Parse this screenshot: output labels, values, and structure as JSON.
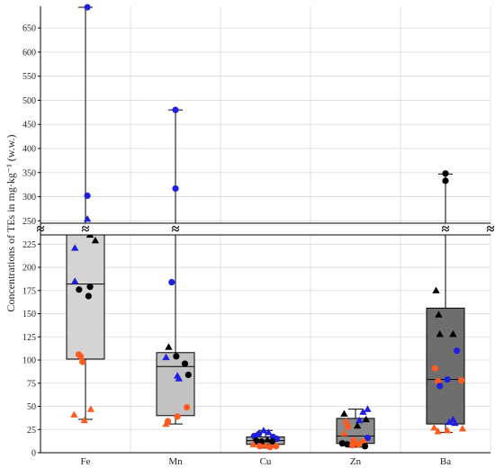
{
  "chart_data": {
    "type": "box",
    "title": "",
    "xlabel": "",
    "ylabel": "Concentrations of TEs in mg·kg⁻¹ (w.w.)",
    "break_symbol": "≈",
    "categories": [
      "Fe",
      "Mn",
      "Cu",
      "Zn",
      "Ba"
    ],
    "grid": true,
    "axis_break": {
      "lower_range": [
        0,
        235
      ],
      "upper_range": [
        245,
        695
      ]
    },
    "upper_ticks": [
      250,
      300,
      350,
      400,
      450,
      500,
      550,
      600,
      650
    ],
    "lower_ticks": [
      0,
      25,
      50,
      75,
      100,
      125,
      150,
      175,
      200,
      225
    ],
    "colors": {
      "blue": "#1f1fe0",
      "black": "#000000",
      "orange": "#ff5a1f",
      "box_edge": "#000000"
    },
    "boxes": [
      {
        "category": "Fe",
        "q1": 101,
        "median": 182,
        "q3": 235,
        "whisker_low": 36,
        "whisker_high": 693,
        "fill": "#d4d4d4"
      },
      {
        "category": "Mn",
        "q1": 40,
        "median": 93,
        "q3": 108,
        "whisker_low": 31,
        "whisker_high": 480,
        "fill": "#c2c2c2"
      },
      {
        "category": "Cu",
        "q1": 9,
        "median": 13,
        "q3": 17,
        "whisker_low": 5,
        "whisker_high": 24,
        "fill": "#a6a6a6"
      },
      {
        "category": "Zn",
        "q1": 10,
        "median": 18,
        "q3": 37,
        "whisker_low": 6,
        "whisker_high": 47,
        "fill": "#8a8a8a"
      },
      {
        "category": "Ba",
        "q1": 31,
        "median": 79,
        "q3": 156,
        "whisker_low": 22,
        "whisker_high": 347,
        "fill": "#6e6e6e"
      }
    ],
    "points": [
      {
        "category": "Fe",
        "dx": 0.05,
        "y": 693,
        "color": "blue",
        "marker": "circle"
      },
      {
        "category": "Fe",
        "dx": 0.05,
        "y": 302,
        "color": "blue",
        "marker": "circle"
      },
      {
        "category": "Fe",
        "dx": 0.05,
        "y": 254,
        "color": "blue",
        "marker": "triangle"
      },
      {
        "category": "Fe",
        "dx": 0.3,
        "y": 236,
        "color": "blue",
        "marker": "circle"
      },
      {
        "category": "Fe",
        "dx": -0.28,
        "y": 221,
        "color": "blue",
        "marker": "triangle"
      },
      {
        "category": "Fe",
        "dx": -0.28,
        "y": 185,
        "color": "blue",
        "marker": "triangle"
      },
      {
        "category": "Fe",
        "dx": 0.12,
        "y": 235,
        "color": "black",
        "marker": "triangle"
      },
      {
        "category": "Fe",
        "dx": 0.26,
        "y": 229,
        "color": "black",
        "marker": "triangle"
      },
      {
        "category": "Fe",
        "dx": -0.17,
        "y": 176,
        "color": "black",
        "marker": "circle"
      },
      {
        "category": "Fe",
        "dx": 0.12,
        "y": 179,
        "color": "black",
        "marker": "circle"
      },
      {
        "category": "Fe",
        "dx": 0.08,
        "y": 169,
        "color": "black",
        "marker": "circle"
      },
      {
        "category": "Fe",
        "dx": -0.18,
        "y": 106,
        "color": "orange",
        "marker": "circle"
      },
      {
        "category": "Fe",
        "dx": -0.13,
        "y": 104,
        "color": "orange",
        "marker": "circle"
      },
      {
        "category": "Fe",
        "dx": -0.08,
        "y": 98,
        "color": "orange",
        "marker": "circle"
      },
      {
        "category": "Fe",
        "dx": -0.3,
        "y": 41,
        "color": "orange",
        "marker": "triangle"
      },
      {
        "category": "Fe",
        "dx": -0.03,
        "y": 35,
        "color": "orange",
        "marker": "triangle"
      },
      {
        "category": "Fe",
        "dx": 0.14,
        "y": 47,
        "color": "orange",
        "marker": "triangle"
      },
      {
        "category": "Mn",
        "dx": 0.0,
        "y": 480,
        "color": "blue",
        "marker": "circle"
      },
      {
        "category": "Mn",
        "dx": 0.0,
        "y": 317,
        "color": "blue",
        "marker": "circle"
      },
      {
        "category": "Mn",
        "dx": -0.1,
        "y": 184,
        "color": "blue",
        "marker": "circle"
      },
      {
        "category": "Mn",
        "dx": -0.18,
        "y": 114,
        "color": "black",
        "marker": "triangle"
      },
      {
        "category": "Mn",
        "dx": -0.25,
        "y": 103,
        "color": "blue",
        "marker": "triangle"
      },
      {
        "category": "Mn",
        "dx": 0.02,
        "y": 104,
        "color": "black",
        "marker": "circle"
      },
      {
        "category": "Mn",
        "dx": 0.25,
        "y": 96,
        "color": "black",
        "marker": "circle"
      },
      {
        "category": "Mn",
        "dx": 0.34,
        "y": 84,
        "color": "black",
        "marker": "circle"
      },
      {
        "category": "Mn",
        "dx": 0.05,
        "y": 83,
        "color": "blue",
        "marker": "triangle"
      },
      {
        "category": "Mn",
        "dx": 0.09,
        "y": 80,
        "color": "blue",
        "marker": "triangle"
      },
      {
        "category": "Mn",
        "dx": 0.3,
        "y": 49,
        "color": "orange",
        "marker": "circle"
      },
      {
        "category": "Mn",
        "dx": 0.05,
        "y": 39,
        "color": "orange",
        "marker": "circle"
      },
      {
        "category": "Mn",
        "dx": -0.2,
        "y": 34,
        "color": "orange",
        "marker": "circle"
      },
      {
        "category": "Mn",
        "dx": -0.25,
        "y": 31,
        "color": "orange",
        "marker": "triangle"
      },
      {
        "category": "Cu",
        "dx": -0.3,
        "y": 18,
        "color": "blue",
        "marker": "circle"
      },
      {
        "category": "Cu",
        "dx": -0.18,
        "y": 20,
        "color": "blue",
        "marker": "circle"
      },
      {
        "category": "Cu",
        "dx": -0.05,
        "y": 24,
        "color": "blue",
        "marker": "triangle"
      },
      {
        "category": "Cu",
        "dx": 0.08,
        "y": 22,
        "color": "blue",
        "marker": "triangle"
      },
      {
        "category": "Cu",
        "dx": 0.2,
        "y": 17,
        "color": "blue",
        "marker": "circle"
      },
      {
        "category": "Cu",
        "dx": 0.3,
        "y": 15,
        "color": "blue",
        "marker": "circle"
      },
      {
        "category": "Cu",
        "dx": -0.25,
        "y": 13,
        "color": "black",
        "marker": "circle"
      },
      {
        "category": "Cu",
        "dx": -0.1,
        "y": 12,
        "color": "black",
        "marker": "circle"
      },
      {
        "category": "Cu",
        "dx": 0.05,
        "y": 14,
        "color": "black",
        "marker": "triangle"
      },
      {
        "category": "Cu",
        "dx": 0.18,
        "y": 12,
        "color": "black",
        "marker": "circle"
      },
      {
        "category": "Cu",
        "dx": -0.32,
        "y": 9,
        "color": "orange",
        "marker": "triangle"
      },
      {
        "category": "Cu",
        "dx": -0.15,
        "y": 7,
        "color": "orange",
        "marker": "circle"
      },
      {
        "category": "Cu",
        "dx": 0.0,
        "y": 8,
        "color": "orange",
        "marker": "triangle"
      },
      {
        "category": "Cu",
        "dx": 0.12,
        "y": 6,
        "color": "orange",
        "marker": "circle"
      },
      {
        "category": "Cu",
        "dx": 0.28,
        "y": 7,
        "color": "orange",
        "marker": "circle"
      },
      {
        "category": "Zn",
        "dx": -0.3,
        "y": 42,
        "color": "black",
        "marker": "triangle"
      },
      {
        "category": "Zn",
        "dx": 0.2,
        "y": 44,
        "color": "blue",
        "marker": "triangle"
      },
      {
        "category": "Zn",
        "dx": 0.32,
        "y": 47,
        "color": "blue",
        "marker": "triangle"
      },
      {
        "category": "Zn",
        "dx": 0.1,
        "y": 35,
        "color": "blue",
        "marker": "triangle"
      },
      {
        "category": "Zn",
        "dx": 0.28,
        "y": 36,
        "color": "black",
        "marker": "triangle"
      },
      {
        "category": "Zn",
        "dx": -0.25,
        "y": 34,
        "color": "orange",
        "marker": "triangle"
      },
      {
        "category": "Zn",
        "dx": -0.2,
        "y": 28,
        "color": "orange",
        "marker": "circle"
      },
      {
        "category": "Zn",
        "dx": 0.05,
        "y": 29,
        "color": "black",
        "marker": "triangle"
      },
      {
        "category": "Zn",
        "dx": -0.3,
        "y": 21,
        "color": "orange",
        "marker": "triangle"
      },
      {
        "category": "Zn",
        "dx": 0.32,
        "y": 16,
        "color": "blue",
        "marker": "circle"
      },
      {
        "category": "Zn",
        "dx": -0.05,
        "y": 13,
        "color": "orange",
        "marker": "circle"
      },
      {
        "category": "Zn",
        "dx": 0.2,
        "y": 12,
        "color": "orange",
        "marker": "circle"
      },
      {
        "category": "Zn",
        "dx": -0.35,
        "y": 10,
        "color": "black",
        "marker": "circle"
      },
      {
        "category": "Zn",
        "dx": -0.22,
        "y": 9,
        "color": "black",
        "marker": "circle"
      },
      {
        "category": "Zn",
        "dx": -0.08,
        "y": 8,
        "color": "orange",
        "marker": "circle"
      },
      {
        "category": "Zn",
        "dx": 0.08,
        "y": 9,
        "color": "orange",
        "marker": "circle"
      },
      {
        "category": "Zn",
        "dx": 0.25,
        "y": 7,
        "color": "black",
        "marker": "circle"
      },
      {
        "category": "Ba",
        "dx": 0.0,
        "y": 348,
        "color": "black",
        "marker": "circle"
      },
      {
        "category": "Ba",
        "dx": 0.0,
        "y": 333,
        "color": "black",
        "marker": "circle"
      },
      {
        "category": "Ba",
        "dx": -0.25,
        "y": 175,
        "color": "black",
        "marker": "triangle"
      },
      {
        "category": "Ba",
        "dx": -0.18,
        "y": 149,
        "color": "black",
        "marker": "triangle"
      },
      {
        "category": "Ba",
        "dx": -0.15,
        "y": 128,
        "color": "black",
        "marker": "triangle"
      },
      {
        "category": "Ba",
        "dx": 0.2,
        "y": 128,
        "color": "black",
        "marker": "triangle"
      },
      {
        "category": "Ba",
        "dx": 0.3,
        "y": 110,
        "color": "blue",
        "marker": "circle"
      },
      {
        "category": "Ba",
        "dx": -0.28,
        "y": 91,
        "color": "orange",
        "marker": "circle"
      },
      {
        "category": "Ba",
        "dx": -0.2,
        "y": 77,
        "color": "orange",
        "marker": "circle"
      },
      {
        "category": "Ba",
        "dx": 0.05,
        "y": 79,
        "color": "blue",
        "marker": "circle"
      },
      {
        "category": "Ba",
        "dx": 0.42,
        "y": 78,
        "color": "orange",
        "marker": "circle"
      },
      {
        "category": "Ba",
        "dx": -0.15,
        "y": 72,
        "color": "blue",
        "marker": "circle"
      },
      {
        "category": "Ba",
        "dx": 0.2,
        "y": 36,
        "color": "blue",
        "marker": "triangle"
      },
      {
        "category": "Ba",
        "dx": 0.1,
        "y": 33,
        "color": "blue",
        "marker": "triangle"
      },
      {
        "category": "Ba",
        "dx": 0.25,
        "y": 32,
        "color": "blue",
        "marker": "triangle"
      },
      {
        "category": "Ba",
        "dx": -0.3,
        "y": 27,
        "color": "orange",
        "marker": "triangle"
      },
      {
        "category": "Ba",
        "dx": -0.2,
        "y": 23,
        "color": "orange",
        "marker": "triangle"
      },
      {
        "category": "Ba",
        "dx": 0.05,
        "y": 24,
        "color": "orange",
        "marker": "triangle"
      },
      {
        "category": "Ba",
        "dx": 0.45,
        "y": 26,
        "color": "orange",
        "marker": "triangle"
      }
    ]
  }
}
